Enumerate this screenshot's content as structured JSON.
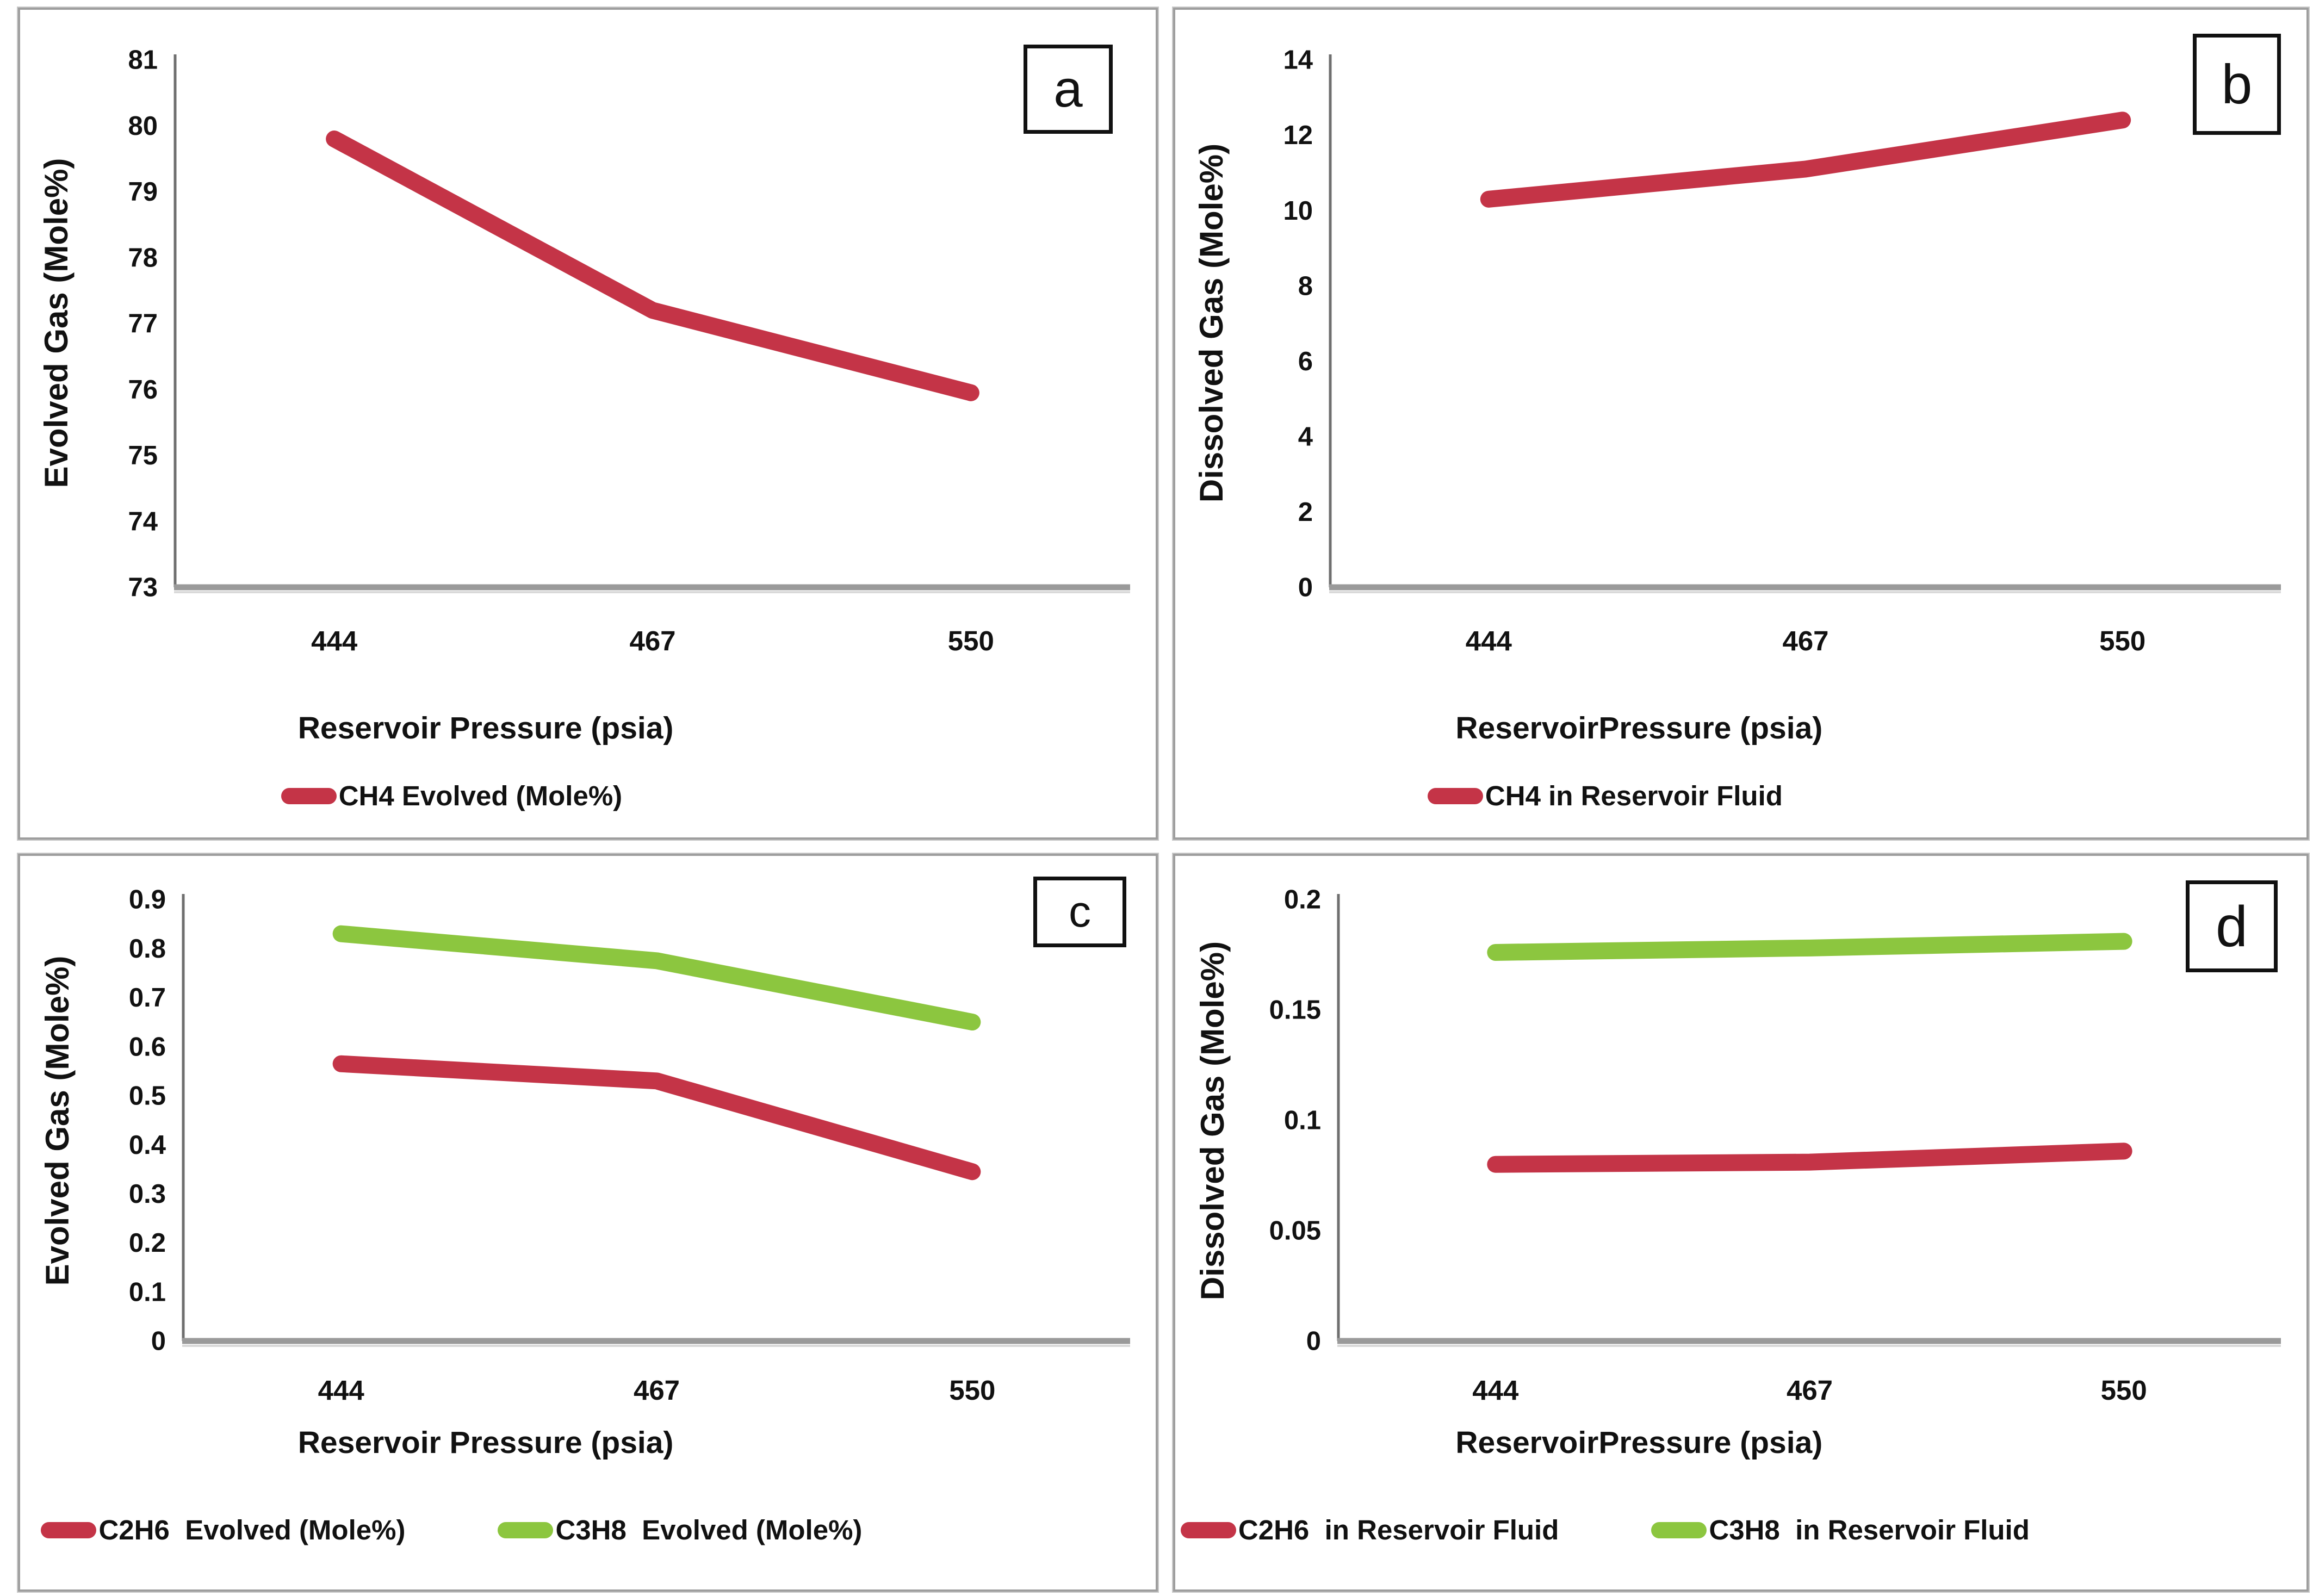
{
  "figure": {
    "panel_labels": [
      "a",
      "b",
      "c",
      "d"
    ]
  },
  "colors": {
    "red": "#C43447",
    "green": "#8CC63F",
    "axis_vertical": "#6f6f6f",
    "axis_horizontal": "#9a9a9a",
    "text": "#111111",
    "panel_border": "#9e9e9e"
  },
  "chart_data": [
    {
      "type": "line",
      "panel_label": "a",
      "title": "",
      "xlabel": "Reservoir Pressure (psia)",
      "ylabel": "Evolved Gas (Mole%)",
      "x": [
        444,
        467,
        550
      ],
      "x_tick_labels": [
        "444",
        "467",
        "550"
      ],
      "ylim": [
        73,
        81
      ],
      "yticks": [
        73,
        74,
        75,
        76,
        77,
        78,
        79,
        80,
        81
      ],
      "ytick_labels": [
        "73",
        "74",
        "75",
        "76",
        "77",
        "78",
        "79",
        "80",
        "81"
      ],
      "grid": false,
      "legend_position": "bottom",
      "series": [
        {
          "name": "CH4 Evolved (Mole%)",
          "color_key": "red",
          "values": [
            79.8,
            77.2,
            75.95
          ]
        }
      ]
    },
    {
      "type": "line",
      "panel_label": "b",
      "title": "",
      "xlabel": "ReservoirPressure (psia)",
      "ylabel": "Dissolved Gas (Mole%)",
      "x": [
        444,
        467,
        550
      ],
      "x_tick_labels": [
        "444",
        "467",
        "550"
      ],
      "ylim": [
        0,
        14
      ],
      "yticks": [
        0,
        2,
        4,
        6,
        8,
        10,
        12,
        14
      ],
      "ytick_labels": [
        "0",
        "2",
        "4",
        "6",
        "8",
        "10",
        "12",
        "14"
      ],
      "grid": false,
      "legend_position": "bottom",
      "series": [
        {
          "name": "CH4 in Reservoir Fluid",
          "color_key": "red",
          "values": [
            10.3,
            11.1,
            12.4
          ]
        }
      ]
    },
    {
      "type": "line",
      "panel_label": "c",
      "title": "",
      "xlabel": "Reservoir Pressure (psia)",
      "ylabel": "Evolved Gas (Mole%)",
      "x": [
        444,
        467,
        550
      ],
      "x_tick_labels": [
        "444",
        "467",
        "550"
      ],
      "ylim": [
        0,
        0.9
      ],
      "yticks": [
        0,
        0.1,
        0.2,
        0.3,
        0.4,
        0.5,
        0.6,
        0.7,
        0.8,
        0.9
      ],
      "ytick_labels": [
        "0",
        "0.1",
        "0.2",
        "0.3",
        "0.4",
        "0.5",
        "0.6",
        "0.7",
        "0.8",
        "0.9"
      ],
      "grid": false,
      "legend_position": "bottom",
      "series": [
        {
          "name": "C2H6  Evolved (Mole%)",
          "color_key": "red",
          "values": [
            0.565,
            0.53,
            0.345
          ]
        },
        {
          "name": "C3H8  Evolved (Mole%)",
          "color_key": "green",
          "values": [
            0.83,
            0.775,
            0.65
          ]
        }
      ]
    },
    {
      "type": "line",
      "panel_label": "d",
      "title": "",
      "xlabel": "ReservoirPressure (psia)",
      "ylabel": "Dissolved Gas (Mole%)",
      "x": [
        444,
        467,
        550
      ],
      "x_tick_labels": [
        "444",
        "467",
        "550"
      ],
      "ylim": [
        0,
        0.2
      ],
      "yticks": [
        0,
        0.05,
        0.1,
        0.15,
        0.2
      ],
      "ytick_labels": [
        "0",
        "0.05",
        "0.1",
        "0.15",
        "0.2"
      ],
      "grid": false,
      "legend_position": "bottom",
      "series": [
        {
          "name": "C2H6  in Reservoir Fluid",
          "color_key": "red",
          "values": [
            0.08,
            0.081,
            0.086
          ]
        },
        {
          "name": "C3H8  in Reservoir Fluid",
          "color_key": "green",
          "values": [
            0.176,
            0.178,
            0.181
          ]
        }
      ]
    }
  ]
}
